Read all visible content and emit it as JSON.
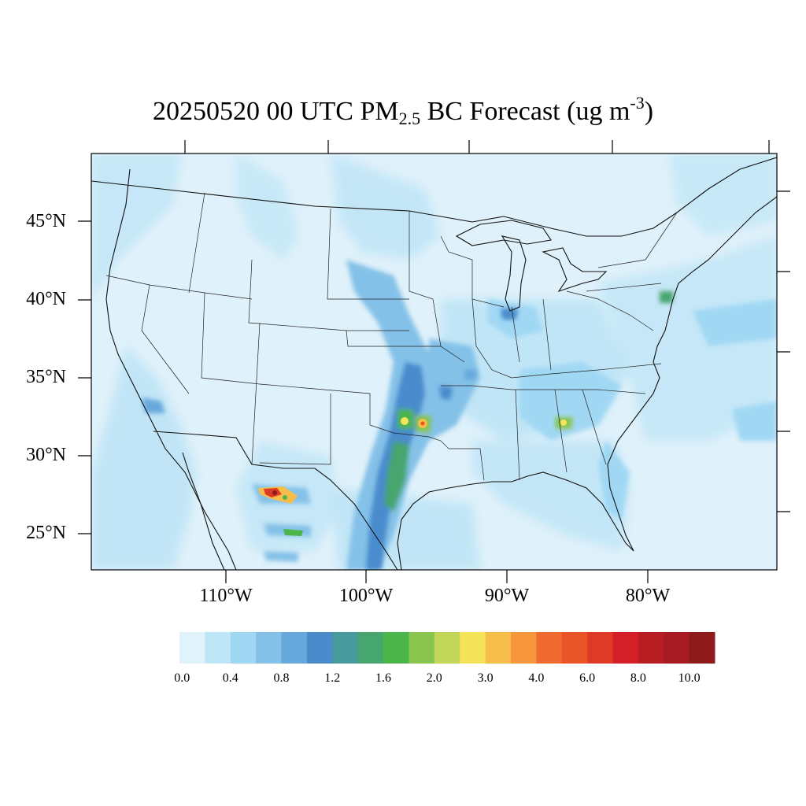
{
  "title": {
    "prefix": "20250520 00 UTC PM",
    "subscript": "2.5",
    "middle": " BC Forecast (ug m",
    "superscript": "-3",
    "suffix": ")"
  },
  "lat_labels": [
    "45°N",
    "40°N",
    "35°N",
    "30°N",
    "25°N"
  ],
  "lon_labels": [
    "110°W",
    "100°W",
    "90°W",
    "80°W"
  ],
  "colorbar": {
    "labels": [
      "0.0",
      "0.4",
      "0.8",
      "1.2",
      "1.6",
      "2.0",
      "3.0",
      "4.0",
      "6.0",
      "8.0",
      "10.0"
    ],
    "colors": [
      "#e0f3fa",
      "#bfe6f7",
      "#a0d8f4",
      "#84c0e8",
      "#66a8db",
      "#4a8bcc",
      "#479a9c",
      "#47a56e",
      "#4db64a",
      "#88c44e",
      "#c2d65a",
      "#f4e45a",
      "#f7bd4a",
      "#f6973e",
      "#f06b30",
      "#e95429",
      "#de3b26",
      "#d21f28",
      "#b81d23",
      "#a61c22",
      "#8e1a1c"
    ]
  },
  "map": {
    "background_color": "#dff1fa",
    "hotspots": [
      {
        "name": "los-angeles",
        "level": "0.8-1.2"
      },
      {
        "name": "chicago",
        "level": "1.2-1.6"
      },
      {
        "name": "new-york",
        "level": "1.6-2.0"
      },
      {
        "name": "atlanta",
        "level": "2.0-3.0"
      },
      {
        "name": "oklahoma-plume",
        "level": "2.0-4.0"
      },
      {
        "name": "texas-plume",
        "level": "1.6-2.0"
      },
      {
        "name": "northern-mexico-fire",
        "level": "6.0-10.0"
      }
    ]
  }
}
